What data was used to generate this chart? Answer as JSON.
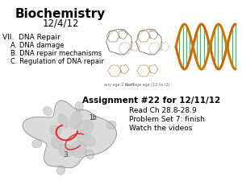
{
  "background_color": "#ffffff",
  "title": "Biochemistry",
  "date": "12/4/12",
  "outline_header": "VII.  DNA Repair",
  "outline_items": [
    "A. DNA damage",
    "B. DNA repair mechanisms",
    "C. Regulation of DNA repair"
  ],
  "assignment_title": "Assignment #22 for 12/11/12",
  "assignment_items": [
    "Read Ch 28.8-28.9",
    "Problem Set 7: finish",
    "Watch the videos"
  ],
  "label_1b": "1b",
  "label_3": "3"
}
